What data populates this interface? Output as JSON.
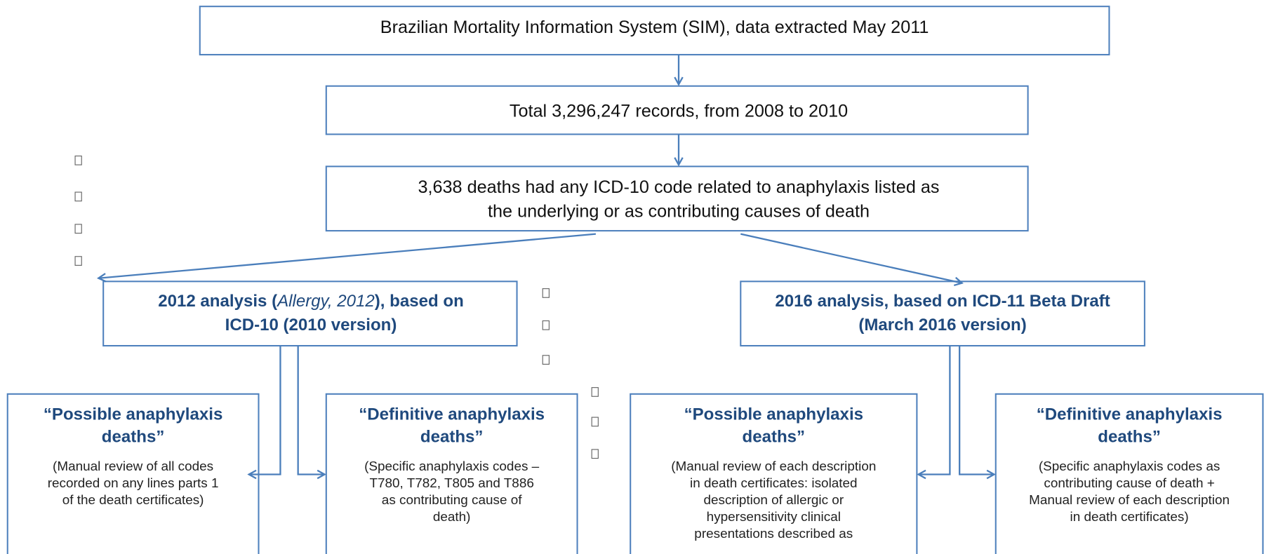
{
  "header": {
    "title": "Brazilian Mortality Information System (SIM), data extracted May 2011"
  },
  "records": {
    "text": "Total 3,296,247 records, from 2008 to 2010"
  },
  "deaths": {
    "lines": [
      "3,638 deaths had any ICD-10 code related to anaphylaxis listed as",
      "the underlying or as contributing causes of death"
    ]
  },
  "analysis_2012": {
    "line1": [
      "2012 analysis (",
      "Allergy, 2012",
      "), based on"
    ],
    "line2": "ICD-10 (2010 version)"
  },
  "analysis_2016": {
    "lines": [
      "2016 analysis, based on ICD-11 Beta Draft",
      "(March 2016 version)"
    ]
  },
  "outcomes": [
    {
      "title": [
        "“Possible anaphylaxis",
        "deaths”"
      ],
      "body": [
        "(Manual review of all codes",
        "recorded on any lines parts 1",
        "of the death certificates)"
      ]
    },
    {
      "title": [
        "“Definitive anaphylaxis",
        "deaths”"
      ],
      "body": [
        "(Specific anaphylaxis codes –",
        "T780, T782, T805 and T886",
        "as contributing cause of",
        "death)"
      ]
    },
    {
      "title": [
        "“Possible anaphylaxis",
        "deaths”"
      ],
      "body": [
        "(Manual review of each description",
        "in death certificates: isolated",
        "description of allergic or",
        "hypersensitivity clinical",
        "presentations described as"
      ]
    },
    {
      "title": [
        "“Definitive anaphylaxis",
        "deaths”"
      ],
      "body": [
        "(Specific anaphylaxis codes as",
        "contributing cause of death +",
        "Manual review of each description",
        "in death certificates)"
      ]
    }
  ]
}
